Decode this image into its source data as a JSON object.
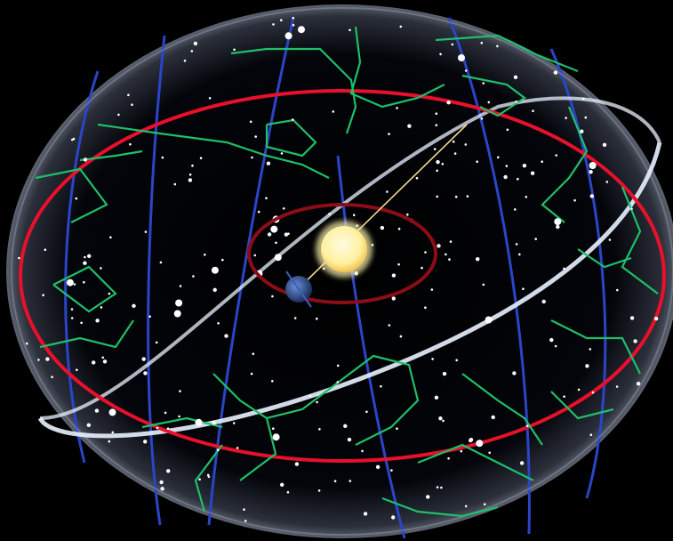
{
  "scene": {
    "description_text": "",
    "colors": {
      "background": "#000000",
      "sphere_dark": "#05070d",
      "sphere_edge": "#9aa3b4",
      "ecliptic": "#e8102a",
      "celestial_equator": "#e8f2ff",
      "meridians": "#2a45c8",
      "constellation_lines": "#1fbf6a",
      "stars": "#ffffff",
      "sun": "#fff3a6",
      "sun_rim": "#f2c34f",
      "earth": "#2f5aa8",
      "earth_orbit": "#8a0d18",
      "axis": "#f0d98a"
    },
    "icons": [
      "sun-icon",
      "earth-icon"
    ]
  }
}
